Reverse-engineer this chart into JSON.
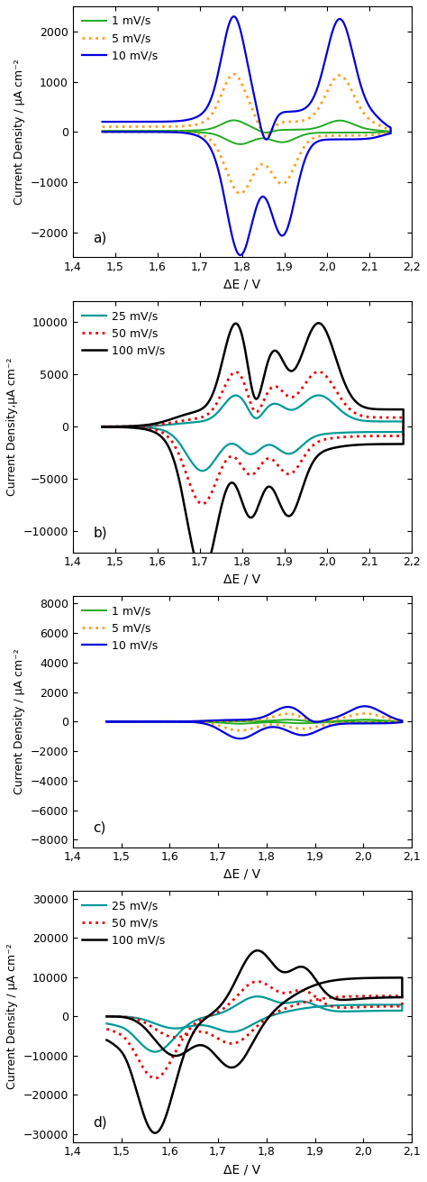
{
  "panels": [
    {
      "label": "a)",
      "xlabel": "ΔE / V",
      "ylabel": "Current Density / μA cm⁻²",
      "xlim": [
        1.4,
        2.2
      ],
      "ylim": [
        -2500,
        2500
      ],
      "yticks": [
        -2000,
        -1000,
        0,
        1000,
        2000
      ],
      "xticks": [
        1.4,
        1.5,
        1.6,
        1.7,
        1.8,
        1.9,
        2.0,
        2.1,
        2.2
      ],
      "legend_loc": "upper left",
      "curves": [
        {
          "label": "1 mV/s",
          "color": "#22aa22",
          "linestyle": "solid",
          "linewidth": 1.4,
          "key": "a_1mvs"
        },
        {
          "label": "5 mV/s",
          "color": "#FFA020",
          "linestyle": "dotted",
          "linewidth": 2.0,
          "key": "a_5mvs"
        },
        {
          "label": "10 mV/s",
          "color": "#0000dd",
          "linestyle": "solid",
          "linewidth": 1.6,
          "key": "a_10mvs"
        }
      ]
    },
    {
      "label": "b)",
      "xlabel": "ΔE / V",
      "ylabel": "Current Density,μA cm⁻²",
      "xlim": [
        1.4,
        2.2
      ],
      "ylim": [
        -12000,
        12000
      ],
      "yticks": [
        -10000,
        -5000,
        0,
        5000,
        10000
      ],
      "xticks": [
        1.4,
        1.5,
        1.6,
        1.7,
        1.8,
        1.9,
        2.0,
        2.1,
        2.2
      ],
      "legend_loc": "upper left",
      "curves": [
        {
          "label": "25 mV/s",
          "color": "#009999",
          "linestyle": "solid",
          "linewidth": 1.6,
          "key": "b_25mvs"
        },
        {
          "label": "50 mV/s",
          "color": "#ee0000",
          "linestyle": "dotted",
          "linewidth": 2.0,
          "key": "b_50mvs"
        },
        {
          "label": "100 mV/s",
          "color": "#000000",
          "linestyle": "solid",
          "linewidth": 1.8,
          "key": "b_100mvs"
        }
      ]
    },
    {
      "label": "c)",
      "xlabel": "ΔE / V",
      "ylabel": "Current Density / μA cm⁻²",
      "xlim": [
        1.4,
        2.1
      ],
      "ylim": [
        -8500,
        8500
      ],
      "yticks": [
        -8000,
        -6000,
        -4000,
        -2000,
        0,
        2000,
        4000,
        6000,
        8000
      ],
      "xticks": [
        1.4,
        1.5,
        1.6,
        1.7,
        1.8,
        1.9,
        2.0,
        2.1
      ],
      "legend_loc": "upper left",
      "curves": [
        {
          "label": "1 mV/s",
          "color": "#22aa22",
          "linestyle": "solid",
          "linewidth": 1.4,
          "key": "c_1mvs"
        },
        {
          "label": "5 mV/s",
          "color": "#FFA020",
          "linestyle": "dotted",
          "linewidth": 2.0,
          "key": "c_5mvs"
        },
        {
          "label": "10 mV/s",
          "color": "#0000dd",
          "linestyle": "solid",
          "linewidth": 1.6,
          "key": "c_10mvs"
        }
      ]
    },
    {
      "label": "d)",
      "xlabel": "ΔE / V",
      "ylabel": "Current Density / μA cm⁻²",
      "xlim": [
        1.4,
        2.1
      ],
      "ylim": [
        -32000,
        32000
      ],
      "yticks": [
        -30000,
        -20000,
        -10000,
        0,
        10000,
        20000,
        30000
      ],
      "xticks": [
        1.4,
        1.5,
        1.6,
        1.7,
        1.8,
        1.9,
        2.0,
        2.1
      ],
      "legend_loc": "upper left",
      "curves": [
        {
          "label": "25 mV/s",
          "color": "#009999",
          "linestyle": "solid",
          "linewidth": 1.6,
          "key": "d_25mvs"
        },
        {
          "label": "50 mV/s",
          "color": "#ee0000",
          "linestyle": "dotted",
          "linewidth": 2.0,
          "key": "d_50mvs"
        },
        {
          "label": "100 mV/s",
          "color": "#000000",
          "linestyle": "solid",
          "linewidth": 1.8,
          "key": "d_100mvs"
        }
      ]
    }
  ]
}
